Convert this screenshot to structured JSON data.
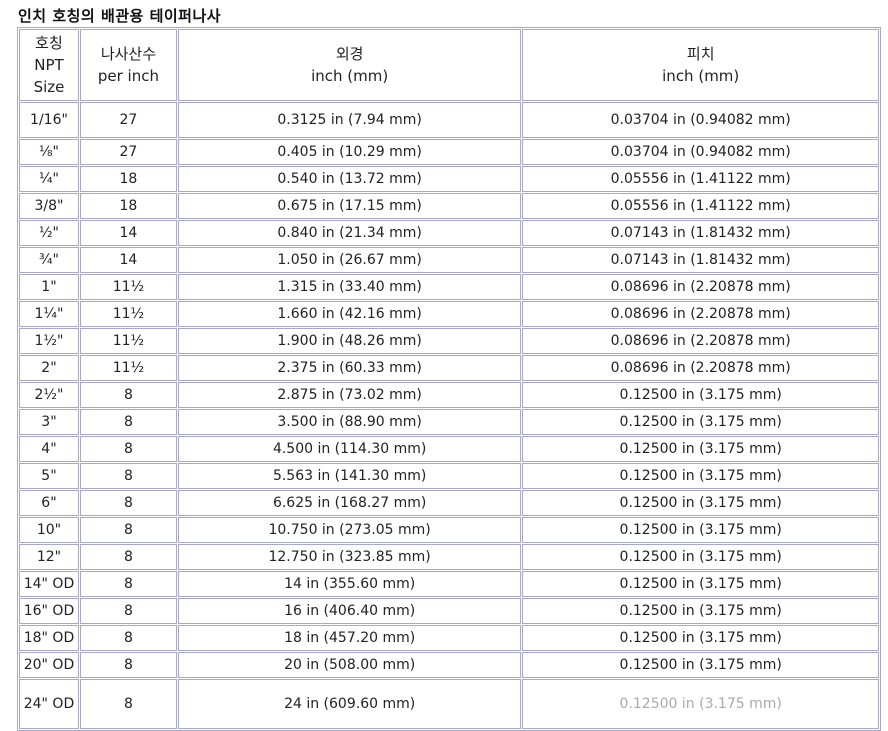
{
  "title": "인치 호칭의 배관용 테이퍼나사",
  "headers": {
    "size": [
      "호칭",
      "NPT",
      "Size"
    ],
    "tpi": [
      "나사산수",
      "per inch"
    ],
    "od": [
      "외경",
      "inch (mm)"
    ],
    "pitch": [
      "피치",
      "inch (mm)"
    ]
  },
  "rows": [
    {
      "size": "1/16\"",
      "tpi": "27",
      "od": "0.3125 in (7.94 mm)",
      "pitch": "0.03704 in (0.94082 mm)"
    },
    {
      "size": "⅛\"",
      "tpi": "27",
      "od": "0.405 in (10.29 mm)",
      "pitch": "0.03704 in (0.94082 mm)"
    },
    {
      "size": "¼\"",
      "tpi": "18",
      "od": "0.540 in (13.72 mm)",
      "pitch": "0.05556 in (1.41122 mm)"
    },
    {
      "size": "3/8\"",
      "tpi": "18",
      "od": "0.675 in (17.15 mm)",
      "pitch": "0.05556 in (1.41122 mm)"
    },
    {
      "size": "½\"",
      "tpi": "14",
      "od": "0.840 in (21.34 mm)",
      "pitch": "0.07143 in (1.81432 mm)"
    },
    {
      "size": "¾\"",
      "tpi": "14",
      "od": "1.050 in (26.67 mm)",
      "pitch": "0.07143 in (1.81432 mm)"
    },
    {
      "size": "1\"",
      "tpi": "11½",
      "od": "1.315 in (33.40 mm)",
      "pitch": "0.08696 in (2.20878 mm)"
    },
    {
      "size": "1¼\"",
      "tpi": "11½",
      "od": "1.660 in (42.16 mm)",
      "pitch": "0.08696 in (2.20878 mm)"
    },
    {
      "size": "1½\"",
      "tpi": "11½",
      "od": "1.900 in (48.26 mm)",
      "pitch": "0.08696 in (2.20878 mm)"
    },
    {
      "size": "2\"",
      "tpi": "11½",
      "od": "2.375 in (60.33 mm)",
      "pitch": "0.08696 in (2.20878 mm)"
    },
    {
      "size": "2½\"",
      "tpi": "8",
      "od": "2.875 in (73.02 mm)",
      "pitch": "0.12500 in (3.175 mm)"
    },
    {
      "size": "3\"",
      "tpi": "8",
      "od": "3.500 in (88.90 mm)",
      "pitch": "0.12500 in (3.175 mm)"
    },
    {
      "size": "4\"",
      "tpi": "8",
      "od": "4.500 in (114.30 mm)",
      "pitch": "0.12500 in (3.175 mm)"
    },
    {
      "size": "5\"",
      "tpi": "8",
      "od": "5.563 in (141.30 mm)",
      "pitch": "0.12500 in (3.175 mm)"
    },
    {
      "size": "6\"",
      "tpi": "8",
      "od": "6.625 in (168.27 mm)",
      "pitch": "0.12500 in (3.175 mm)"
    },
    {
      "size": "10\"",
      "tpi": "8",
      "od": "10.750 in (273.05 mm)",
      "pitch": "0.12500 in (3.175 mm)"
    },
    {
      "size": "12\"",
      "tpi": "8",
      "od": "12.750 in (323.85 mm)",
      "pitch": "0.12500 in (3.175 mm)"
    },
    {
      "size": "14\" OD",
      "tpi": "8",
      "od": "14 in (355.60 mm)",
      "pitch": "0.12500 in (3.175 mm)"
    },
    {
      "size": "16\" OD",
      "tpi": "8",
      "od": "16 in (406.40 mm)",
      "pitch": "0.12500 in (3.175 mm)"
    },
    {
      "size": "18\" OD",
      "tpi": "8",
      "od": "18 in (457.20 mm)",
      "pitch": "0.12500 in (3.175 mm)"
    },
    {
      "size": "20\" OD",
      "tpi": "8",
      "od": "20 in (508.00 mm)",
      "pitch": "0.12500 in (3.175 mm)"
    },
    {
      "size": "24\" OD",
      "tpi": "8",
      "od": "24 in (609.60 mm)",
      "pitch": "0.12500 in (3.175 mm)"
    }
  ],
  "colors": {
    "border": "#a8a8c8",
    "faded_text": "#aaaaaa"
  }
}
